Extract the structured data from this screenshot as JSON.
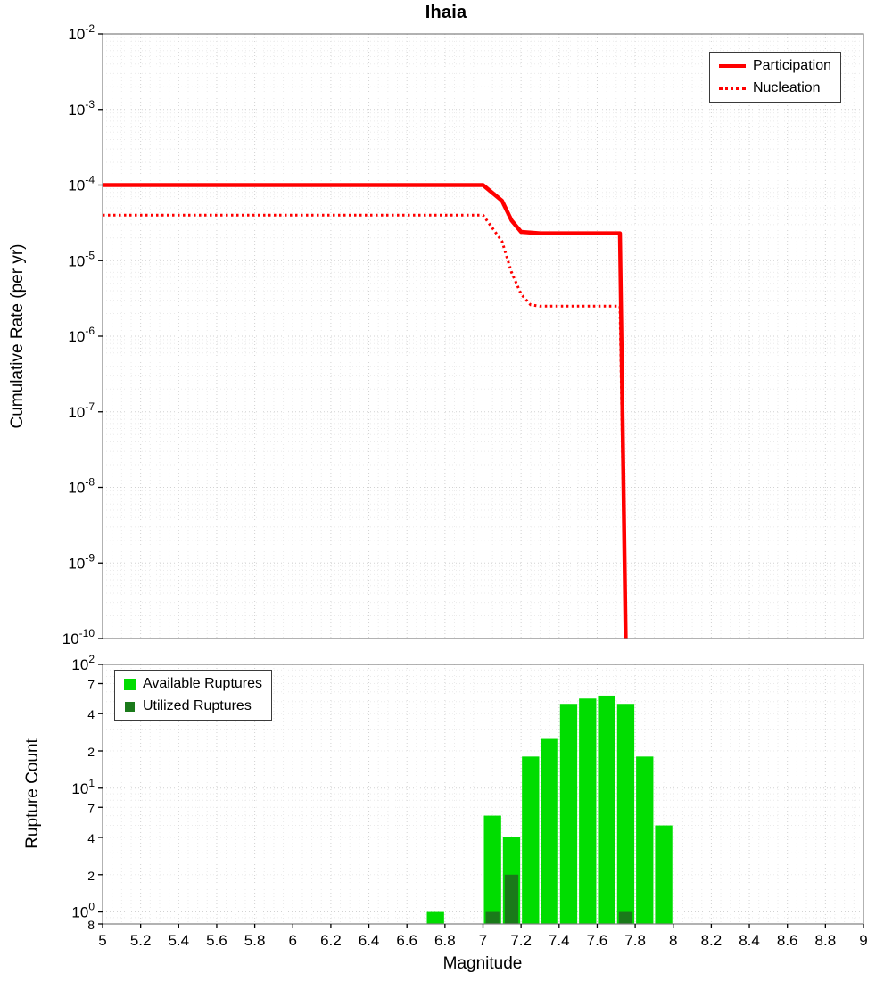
{
  "chart_data": [
    {
      "type": "line",
      "title": "Ihaia",
      "ylabel": "Cumulative Rate (per yr)",
      "xlim": [
        5,
        9
      ],
      "ylim": [
        1e-10,
        0.01
      ],
      "y_scale": "log",
      "grid": true,
      "legend_position": "top-right",
      "y_ticks": [
        {
          "v": 0.01,
          "label": "10^-2"
        },
        {
          "v": 0.001,
          "label": "10^-3"
        },
        {
          "v": 0.0001,
          "label": "10^-4"
        },
        {
          "v": 1e-05,
          "label": "10^-5"
        },
        {
          "v": 1e-06,
          "label": "10^-6"
        },
        {
          "v": 1e-07,
          "label": "10^-7"
        },
        {
          "v": 1e-08,
          "label": "10^-8"
        },
        {
          "v": 1e-09,
          "label": "10^-9"
        },
        {
          "v": 1e-10,
          "label": "10^-10"
        }
      ],
      "series": [
        {
          "name": "Participation",
          "color": "#ff0000",
          "style": "solid",
          "points": [
            [
              5,
              0.0001
            ],
            [
              7.0,
              0.0001
            ],
            [
              7.1,
              6.2e-05
            ],
            [
              7.15,
              3.4e-05
            ],
            [
              7.2,
              2.4e-05
            ],
            [
              7.3,
              2.3e-05
            ],
            [
              7.72,
              2.3e-05
            ],
            [
              7.75,
              1e-10
            ]
          ]
        },
        {
          "name": "Nucleation",
          "color": "#ff0000",
          "style": "dotted",
          "points": [
            [
              5,
              4e-05
            ],
            [
              7.0,
              4e-05
            ],
            [
              7.1,
              1.8e-05
            ],
            [
              7.15,
              7e-06
            ],
            [
              7.2,
              3.6e-06
            ],
            [
              7.25,
              2.6e-06
            ],
            [
              7.3,
              2.5e-06
            ],
            [
              7.72,
              2.5e-06
            ],
            [
              7.75,
              1e-10
            ]
          ]
        }
      ]
    },
    {
      "type": "bar",
      "ylabel": "Rupture Count",
      "xlabel": "Magnitude",
      "xlim": [
        5,
        9
      ],
      "ylim": [
        0.8,
        100
      ],
      "y_scale": "log",
      "bar_width": 0.1,
      "grid": true,
      "legend_position": "top-left",
      "x_ticks": [
        "5",
        "5.2",
        "5.4",
        "5.6",
        "5.8",
        "6",
        "6.2",
        "6.4",
        "6.6",
        "6.8",
        "7",
        "7.2",
        "7.4",
        "7.6",
        "7.8",
        "8",
        "8.2",
        "8.4",
        "8.6",
        "8.8",
        "9"
      ],
      "y_ticks": [
        {
          "v": 100,
          "label": "10^2"
        },
        {
          "v": 70,
          "label": "7"
        },
        {
          "v": 40,
          "label": "4"
        },
        {
          "v": 20,
          "label": "2"
        },
        {
          "v": 10,
          "label": "10^1"
        },
        {
          "v": 7,
          "label": "7"
        },
        {
          "v": 4,
          "label": "4"
        },
        {
          "v": 2,
          "label": "2"
        },
        {
          "v": 1,
          "label": "10^0"
        },
        {
          "v": 0.8,
          "label": "8"
        }
      ],
      "series": [
        {
          "name": "Available Ruptures",
          "color": "#00dd00",
          "x": [
            6.75,
            7.05,
            7.15,
            7.25,
            7.35,
            7.45,
            7.55,
            7.65,
            7.75,
            7.85,
            7.95
          ],
          "values": [
            1,
            6,
            4,
            18,
            25,
            48,
            53,
            56,
            48,
            18,
            5
          ]
        },
        {
          "name": "Utilized Ruptures",
          "color": "#1a7a1a",
          "x": [
            7.05,
            7.15,
            7.75
          ],
          "values": [
            1,
            2,
            1
          ]
        }
      ]
    }
  ]
}
